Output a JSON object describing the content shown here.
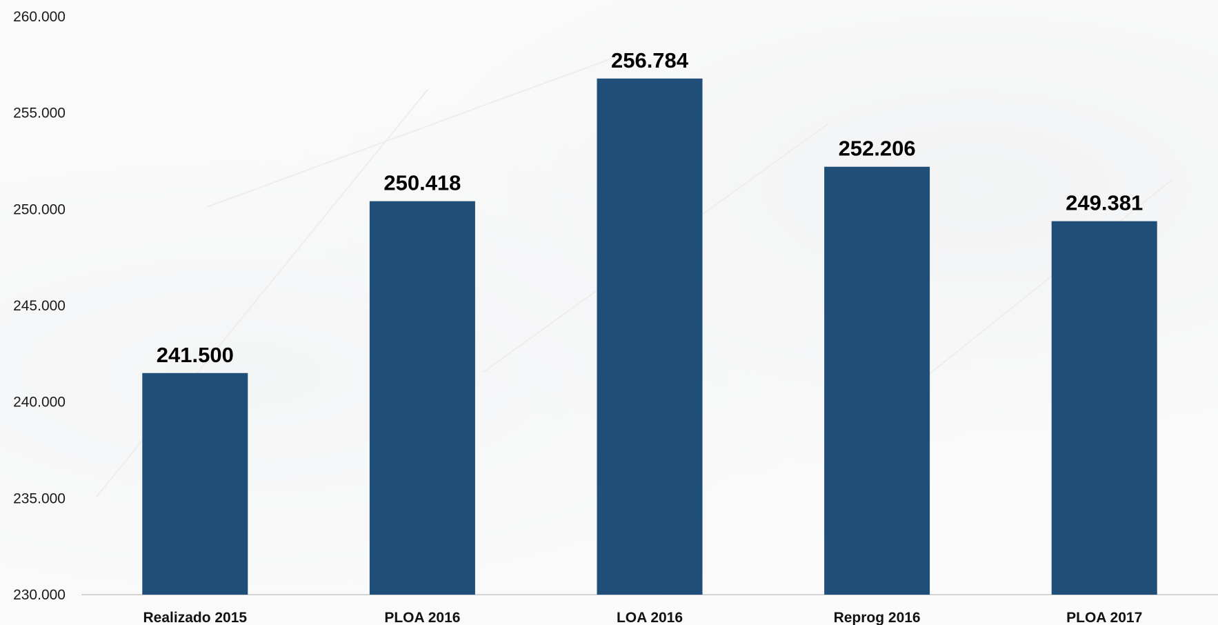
{
  "chart_data": {
    "type": "bar",
    "categories": [
      "Realizado 2015",
      "PLOA 2016",
      "LOA 2016",
      "Reprog 2016",
      "PLOA 2017"
    ],
    "values": [
      241500,
      250418,
      256784,
      252206,
      249381
    ],
    "data_labels": [
      "241.500",
      "250.418",
      "256.784",
      "252.206",
      "249.381"
    ],
    "ylim": [
      230000,
      260000
    ],
    "yticks": [
      230000,
      235000,
      240000,
      245000,
      250000,
      255000,
      260000
    ],
    "ytick_labels": [
      "230.000",
      "235.000",
      "240.000",
      "245.000",
      "250.000",
      "255.000",
      "260.000"
    ],
    "grid": false,
    "legend": "none",
    "bar_color": "#1f4e79",
    "title": "",
    "xlabel": "",
    "ylabel": ""
  }
}
